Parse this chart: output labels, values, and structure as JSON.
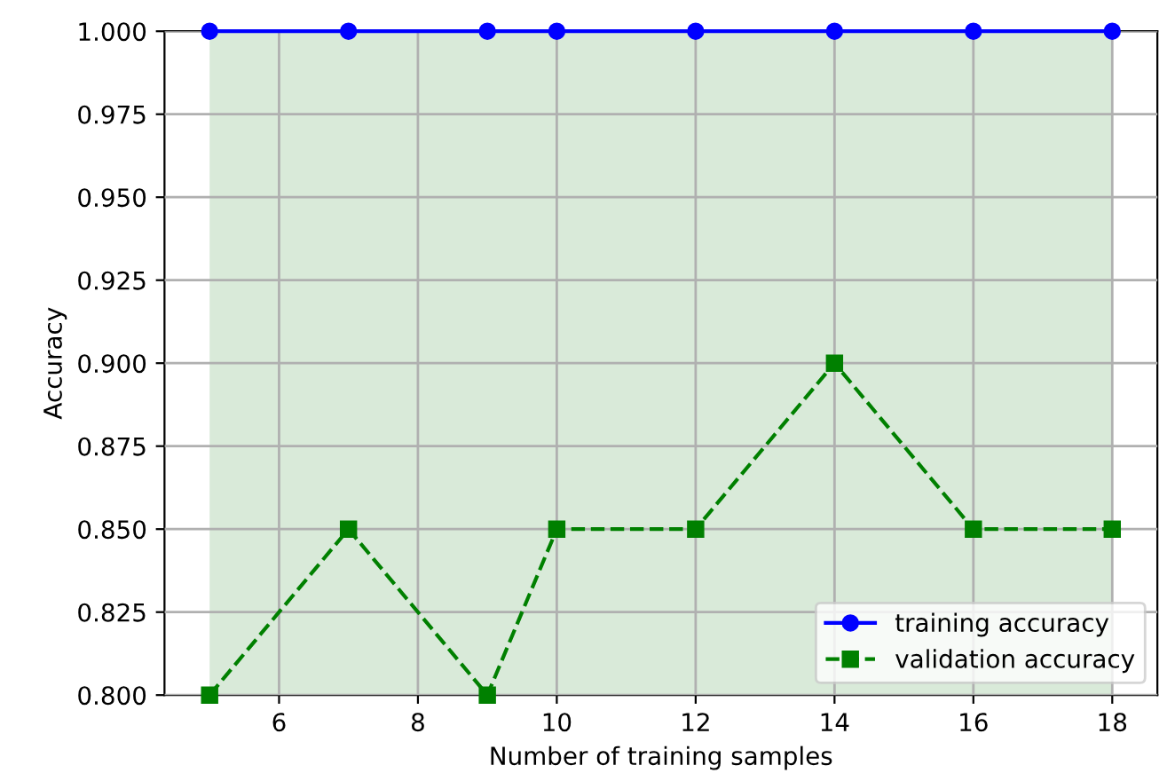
{
  "chart_data": {
    "type": "line",
    "xlabel": "Number of training samples",
    "ylabel": "Accuracy",
    "x": [
      5,
      7,
      9,
      10,
      12,
      14,
      16,
      18
    ],
    "series": [
      {
        "name": "training accuracy",
        "color": "#0000ff",
        "values": [
          1.0,
          1.0,
          1.0,
          1.0,
          1.0,
          1.0,
          1.0,
          1.0
        ],
        "marker": "circle",
        "line_style": "solid"
      },
      {
        "name": "validation accuracy",
        "color": "#008000",
        "values": [
          0.8,
          0.85,
          0.8,
          0.85,
          0.85,
          0.9,
          0.85,
          0.85
        ],
        "marker": "square",
        "line_style": "dashed"
      }
    ],
    "bands": [
      {
        "axis": "x",
        "from": 5,
        "to": 18,
        "color": "#d9ead9"
      }
    ],
    "xlim": [
      4.35,
      18.65
    ],
    "xticks": [
      6,
      8,
      10,
      12,
      14,
      16,
      18
    ],
    "ylim": [
      0.8,
      1.0
    ],
    "yticks": [
      {
        "value": 0.8,
        "label": "0.800"
      },
      {
        "value": 0.825,
        "label": "0.825"
      },
      {
        "value": 0.85,
        "label": "0.850"
      },
      {
        "value": 0.875,
        "label": "0.875"
      },
      {
        "value": 0.9,
        "label": "0.900"
      },
      {
        "value": 0.925,
        "label": "0.925"
      },
      {
        "value": 0.95,
        "label": "0.950"
      },
      {
        "value": 0.975,
        "label": "0.975"
      },
      {
        "value": 1.0,
        "label": "1.000"
      }
    ],
    "grid": true,
    "legend": "bottom right"
  }
}
